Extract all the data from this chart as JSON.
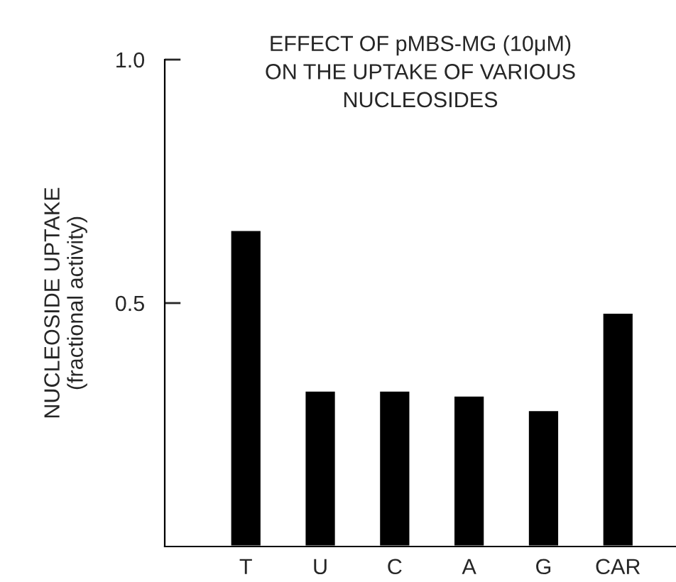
{
  "chart_data": {
    "type": "bar",
    "title": "EFFECT OF pMBS-MG (10μM)\nON THE UPTAKE OF VARIOUS\nNUCLEOSIDES",
    "ylabel": "NUCLEOSIDE UPTAKE\n(fractional activity)",
    "categories": [
      "T",
      "U",
      "C",
      "A",
      "G",
      "CAR"
    ],
    "values": [
      0.65,
      0.32,
      0.32,
      0.31,
      0.28,
      0.48
    ],
    "color": "#000000",
    "ylim": [
      0,
      1.0
    ],
    "yticks": [
      {
        "value": 0.5,
        "label": "0.5"
      },
      {
        "value": 1.0,
        "label": "1.0"
      }
    ],
    "grid": false,
    "legend": false
  }
}
